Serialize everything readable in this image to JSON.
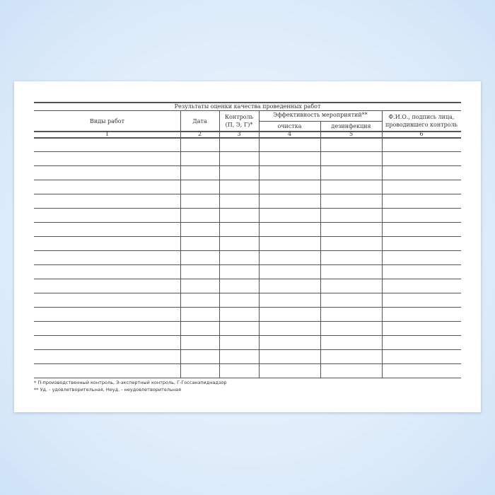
{
  "title": "Результаты оценки качества проведенных работ",
  "headers": {
    "work": "Виды работ",
    "date": "Дата",
    "control_1": "Контроль",
    "control_2": "(П, Э, Г)*",
    "efficiency": "Эффективность мероприятий**",
    "cleaning": "очистка",
    "disinfection": "дезинфекция",
    "fio_1": "Ф.И.О., подпись лица,",
    "fio_2": "проводившего контроль"
  },
  "numbers": [
    "1",
    "2",
    "3",
    "4",
    "5",
    "6"
  ],
  "rows": 17,
  "footnotes": [
    "* П-производственный контроль, Э-экспертный контроль, Г-Госсанэпиднадзор",
    "** Уд. - удовлетворительная, Неуд. - неудовлетворительная"
  ]
}
